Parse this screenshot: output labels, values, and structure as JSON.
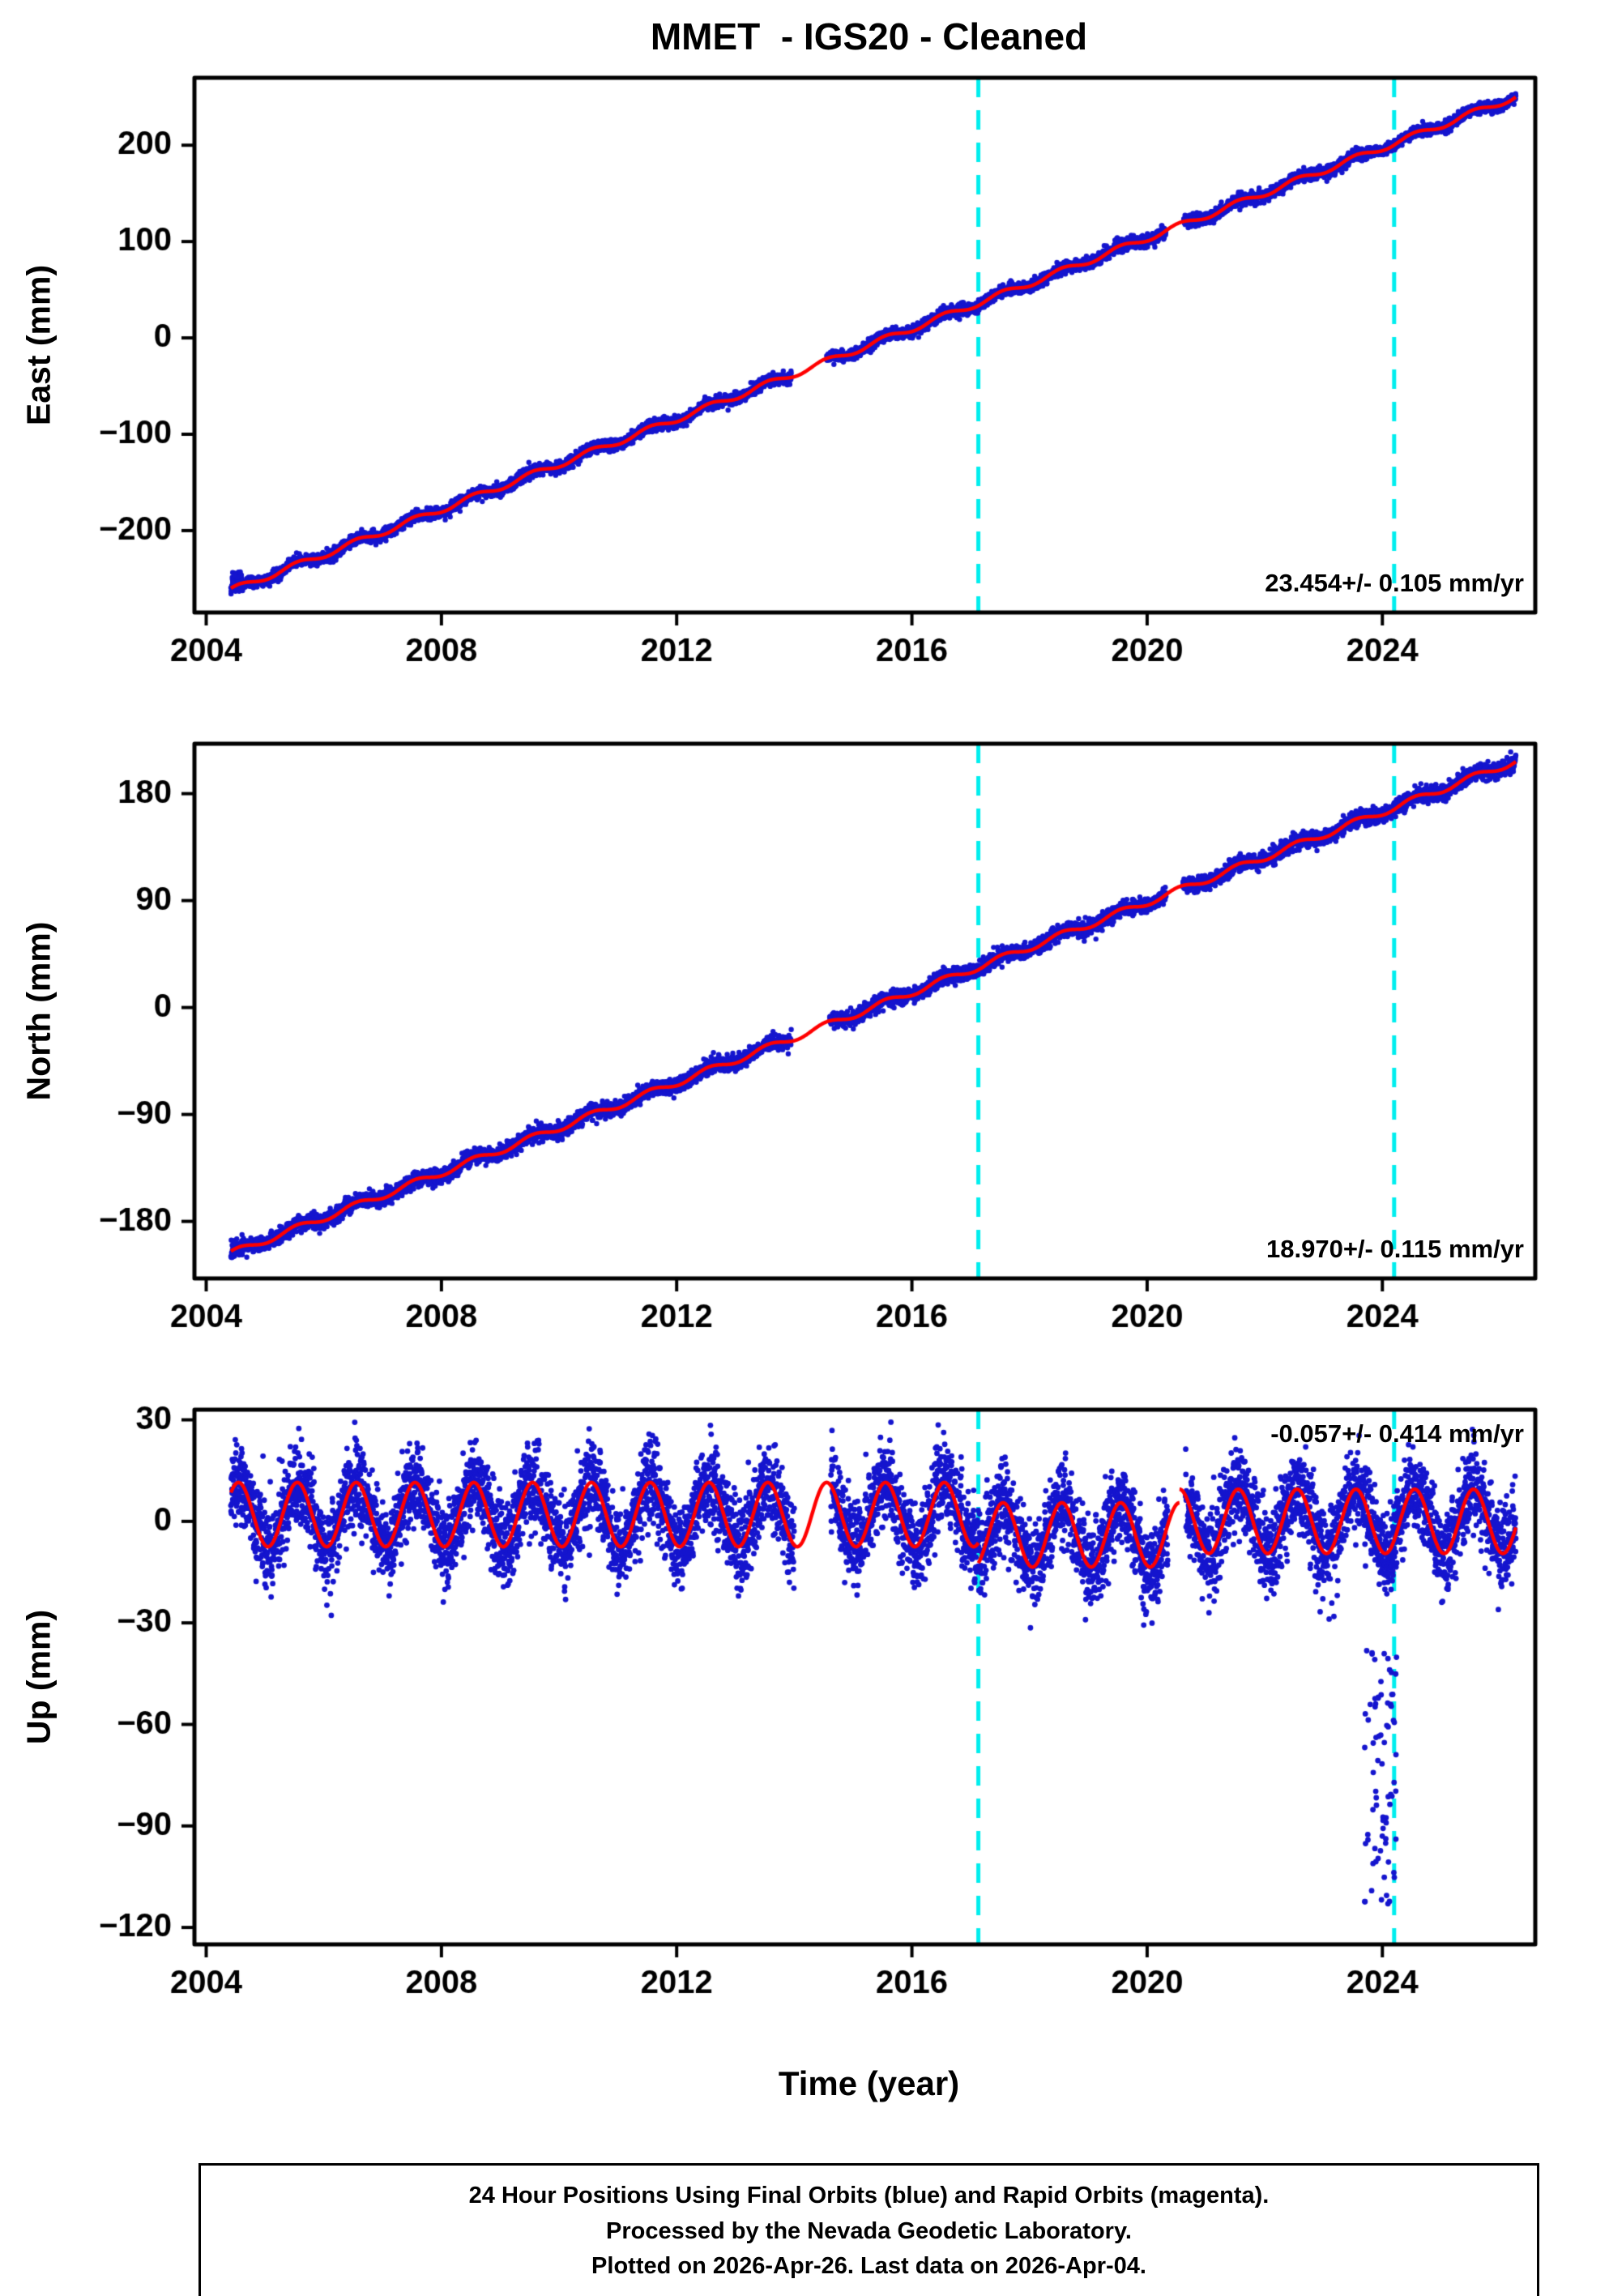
{
  "title": "MMET  - IGS20 - Cleaned",
  "xlabel": "Time (year)",
  "colors": {
    "dot_blue": "#1515CE",
    "trend_red": "#FF0000",
    "vline_cyan": "#00EEEE",
    "frame_black": "#000000"
  },
  "footer_lines": [
    "24 Hour Positions Using Final Orbits (blue) and Rapid Orbits (magenta).",
    "Processed by the Nevada Geodetic Laboratory.",
    "Plotted on 2026-Apr-26. Last data on 2026-Apr-04."
  ],
  "chart_data": [
    {
      "type": "scatter",
      "id": "east",
      "ylabel": "East (mm)",
      "xlim": [
        2003.8,
        2026.6
      ],
      "ylim": [
        -285,
        270
      ],
      "xticks": [
        2004,
        2008,
        2012,
        2016,
        2020,
        2024
      ],
      "yticks": [
        200,
        100,
        0,
        -100,
        -200
      ],
      "rate_label": "23.454+/- 0.105 mm/yr",
      "rate_label_position": "bottom-right",
      "vlines": [
        2017.13,
        2024.2
      ],
      "dot_r": 3.2,
      "series": {
        "x_start": 2004.42,
        "x_end": 2026.27,
        "y_start": -262,
        "y_end": 250.5,
        "rate_mm_yr": 23.454,
        "noise_mm": 3.0,
        "seasonal_mm": 3.2,
        "gaps": [
          [
            2013.95,
            2014.55
          ],
          [
            2020.32,
            2020.62
          ]
        ],
        "steps": [],
        "outliers": [
          {
            "x_range": [
              2004.43,
              2004.6
            ],
            "y_range": [
              -254,
              -241
            ],
            "count": 35
          }
        ]
      }
    },
    {
      "type": "scatter",
      "id": "north",
      "ylabel": "North (mm)",
      "xlim": [
        2003.8,
        2026.6
      ],
      "ylim": [
        -228,
        222
      ],
      "xticks": [
        2004,
        2008,
        2012,
        2016,
        2020,
        2024
      ],
      "yticks": [
        180,
        90,
        0,
        -90,
        -180
      ],
      "rate_label": "18.970+/- 0.115 mm/yr",
      "rate_label_position": "bottom-right",
      "vlines": [
        2017.13,
        2024.2
      ],
      "dot_r": 3.2,
      "series": {
        "x_start": 2004.42,
        "x_end": 2026.27,
        "y_start": -207,
        "y_end": 207.5,
        "rate_mm_yr": 18.97,
        "noise_mm": 3.2,
        "seasonal_mm": 2.8,
        "gaps": [
          [
            2013.95,
            2014.6
          ],
          [
            2020.32,
            2020.6
          ]
        ],
        "steps": [],
        "outliers": []
      }
    },
    {
      "type": "scatter",
      "id": "up",
      "ylabel": "Up (mm)",
      "xlim": [
        2003.8,
        2026.6
      ],
      "ylim": [
        -125,
        33
      ],
      "xticks": [
        2004,
        2008,
        2012,
        2016,
        2020,
        2024
      ],
      "yticks": [
        30,
        0,
        -30,
        -60,
        -90,
        -120
      ],
      "rate_label": "-0.057+/- 0.414 mm/yr",
      "rate_label_position": "top-right",
      "vlines": [
        2017.13,
        2024.2
      ],
      "dot_r": 3.4,
      "series": {
        "x_start": 2004.42,
        "x_end": 2026.27,
        "y_start": 2,
        "y_end": 2,
        "rate_mm_yr": -0.057,
        "noise_mm": 6.2,
        "seasonal_mm": 9.5,
        "gaps": [
          [
            2014.0,
            2014.62
          ],
          [
            2020.35,
            2020.65
          ]
        ],
        "steps": [
          {
            "x": 2017.13,
            "dy": -6
          },
          {
            "x": 2020.55,
            "dy": 4
          }
        ],
        "outliers": [
          {
            "x_range": [
              2023.7,
              2024.24
            ],
            "y_range": [
              -113,
              -38
            ],
            "count": 78
          }
        ]
      }
    }
  ]
}
